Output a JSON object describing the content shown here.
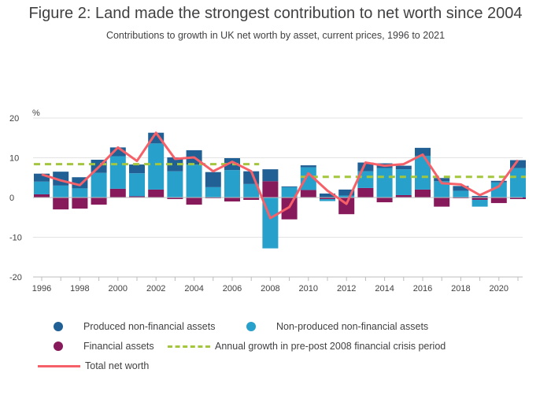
{
  "header": {
    "title": "Figure 2: Land made the strongest contribution to net worth since 2004",
    "subtitle": "Contributions to growth in UK net worth by asset, current prices, 1996 to 2021"
  },
  "colors": {
    "produced": "#206095",
    "nonproduced": "#27a0cc",
    "financial": "#871a5b",
    "trend": "#a4c63c",
    "total": "#f66068",
    "grid": "#e3e3e3",
    "text": "#414042"
  },
  "chart_data": {
    "type": "bar",
    "x": [
      1996,
      1997,
      1998,
      1999,
      2000,
      2001,
      2002,
      2003,
      2004,
      2005,
      2006,
      2007,
      2008,
      2009,
      2010,
      2011,
      2012,
      2013,
      2014,
      2015,
      2016,
      2017,
      2018,
      2019,
      2020,
      2021
    ],
    "xticks": [
      "1996",
      "1998",
      "2000",
      "2002",
      "2004",
      "2006",
      "2008",
      "2010",
      "2012",
      "2014",
      "2016",
      "2018",
      "2020"
    ],
    "yticks": [
      "20",
      "10",
      "0",
      "-10",
      "-20"
    ],
    "ylim": [
      -20,
      20
    ],
    "ylabel": "%",
    "series": [
      {
        "name": "Produced non-financial assets",
        "kind": "bar",
        "values": [
          2.0,
          3.5,
          2.8,
          3.3,
          2.2,
          2.2,
          2.7,
          3.5,
          3.6,
          3.8,
          3.0,
          3.2,
          3.0,
          0.2,
          0.5,
          1.0,
          1.5,
          2.2,
          1.2,
          0.9,
          2.0,
          0.8,
          1.2,
          0.4,
          0.4,
          2.0
        ]
      },
      {
        "name": "Non-produced non-financial assets",
        "kind": "bar",
        "values": [
          3.2,
          3.0,
          2.3,
          6.2,
          8.2,
          5.8,
          11.6,
          6.6,
          8.3,
          2.6,
          6.9,
          3.4,
          -12.8,
          2.6,
          5.7,
          -0.5,
          0.5,
          4.2,
          7.4,
          6.5,
          8.5,
          4.1,
          1.7,
          -1.7,
          3.8,
          7.4
        ]
      },
      {
        "name": "Financial assets",
        "kind": "bar",
        "values": [
          0.8,
          -3.0,
          -2.8,
          -1.8,
          2.2,
          0.3,
          2.0,
          -0.4,
          -1.8,
          -0.2,
          -1.0,
          -0.6,
          4.1,
          -5.5,
          1.9,
          -0.4,
          -4.2,
          2.4,
          -1.2,
          0.6,
          2.0,
          -2.3,
          -0.2,
          -0.6,
          -1.4,
          -0.4
        ]
      },
      {
        "name": "Total net worth",
        "kind": "line",
        "values": [
          5.8,
          4.3,
          3.1,
          7.7,
          12.6,
          9.2,
          16.3,
          9.7,
          10.1,
          6.6,
          9.0,
          6.6,
          -5.2,
          -2.4,
          6.1,
          1.7,
          -1.6,
          8.8,
          8.0,
          8.4,
          10.8,
          3.6,
          3.3,
          0.6,
          2.8,
          9.4
        ]
      },
      {
        "name": "Annual growth in pre-post 2008 financial crisis period",
        "kind": "dashed",
        "segments": [
          {
            "from": 1996,
            "to": 2007,
            "value": 8.4
          },
          {
            "from": 2010,
            "to": 2021,
            "value": 5.2
          }
        ]
      }
    ],
    "legend_position": "bottom"
  },
  "legend": {
    "produced": "Produced non-financial assets",
    "nonproduced": "Non-produced non-financial assets",
    "financial": "Financial assets",
    "trend": "Annual growth in pre-post 2008 financial crisis period",
    "total": "Total net worth"
  }
}
